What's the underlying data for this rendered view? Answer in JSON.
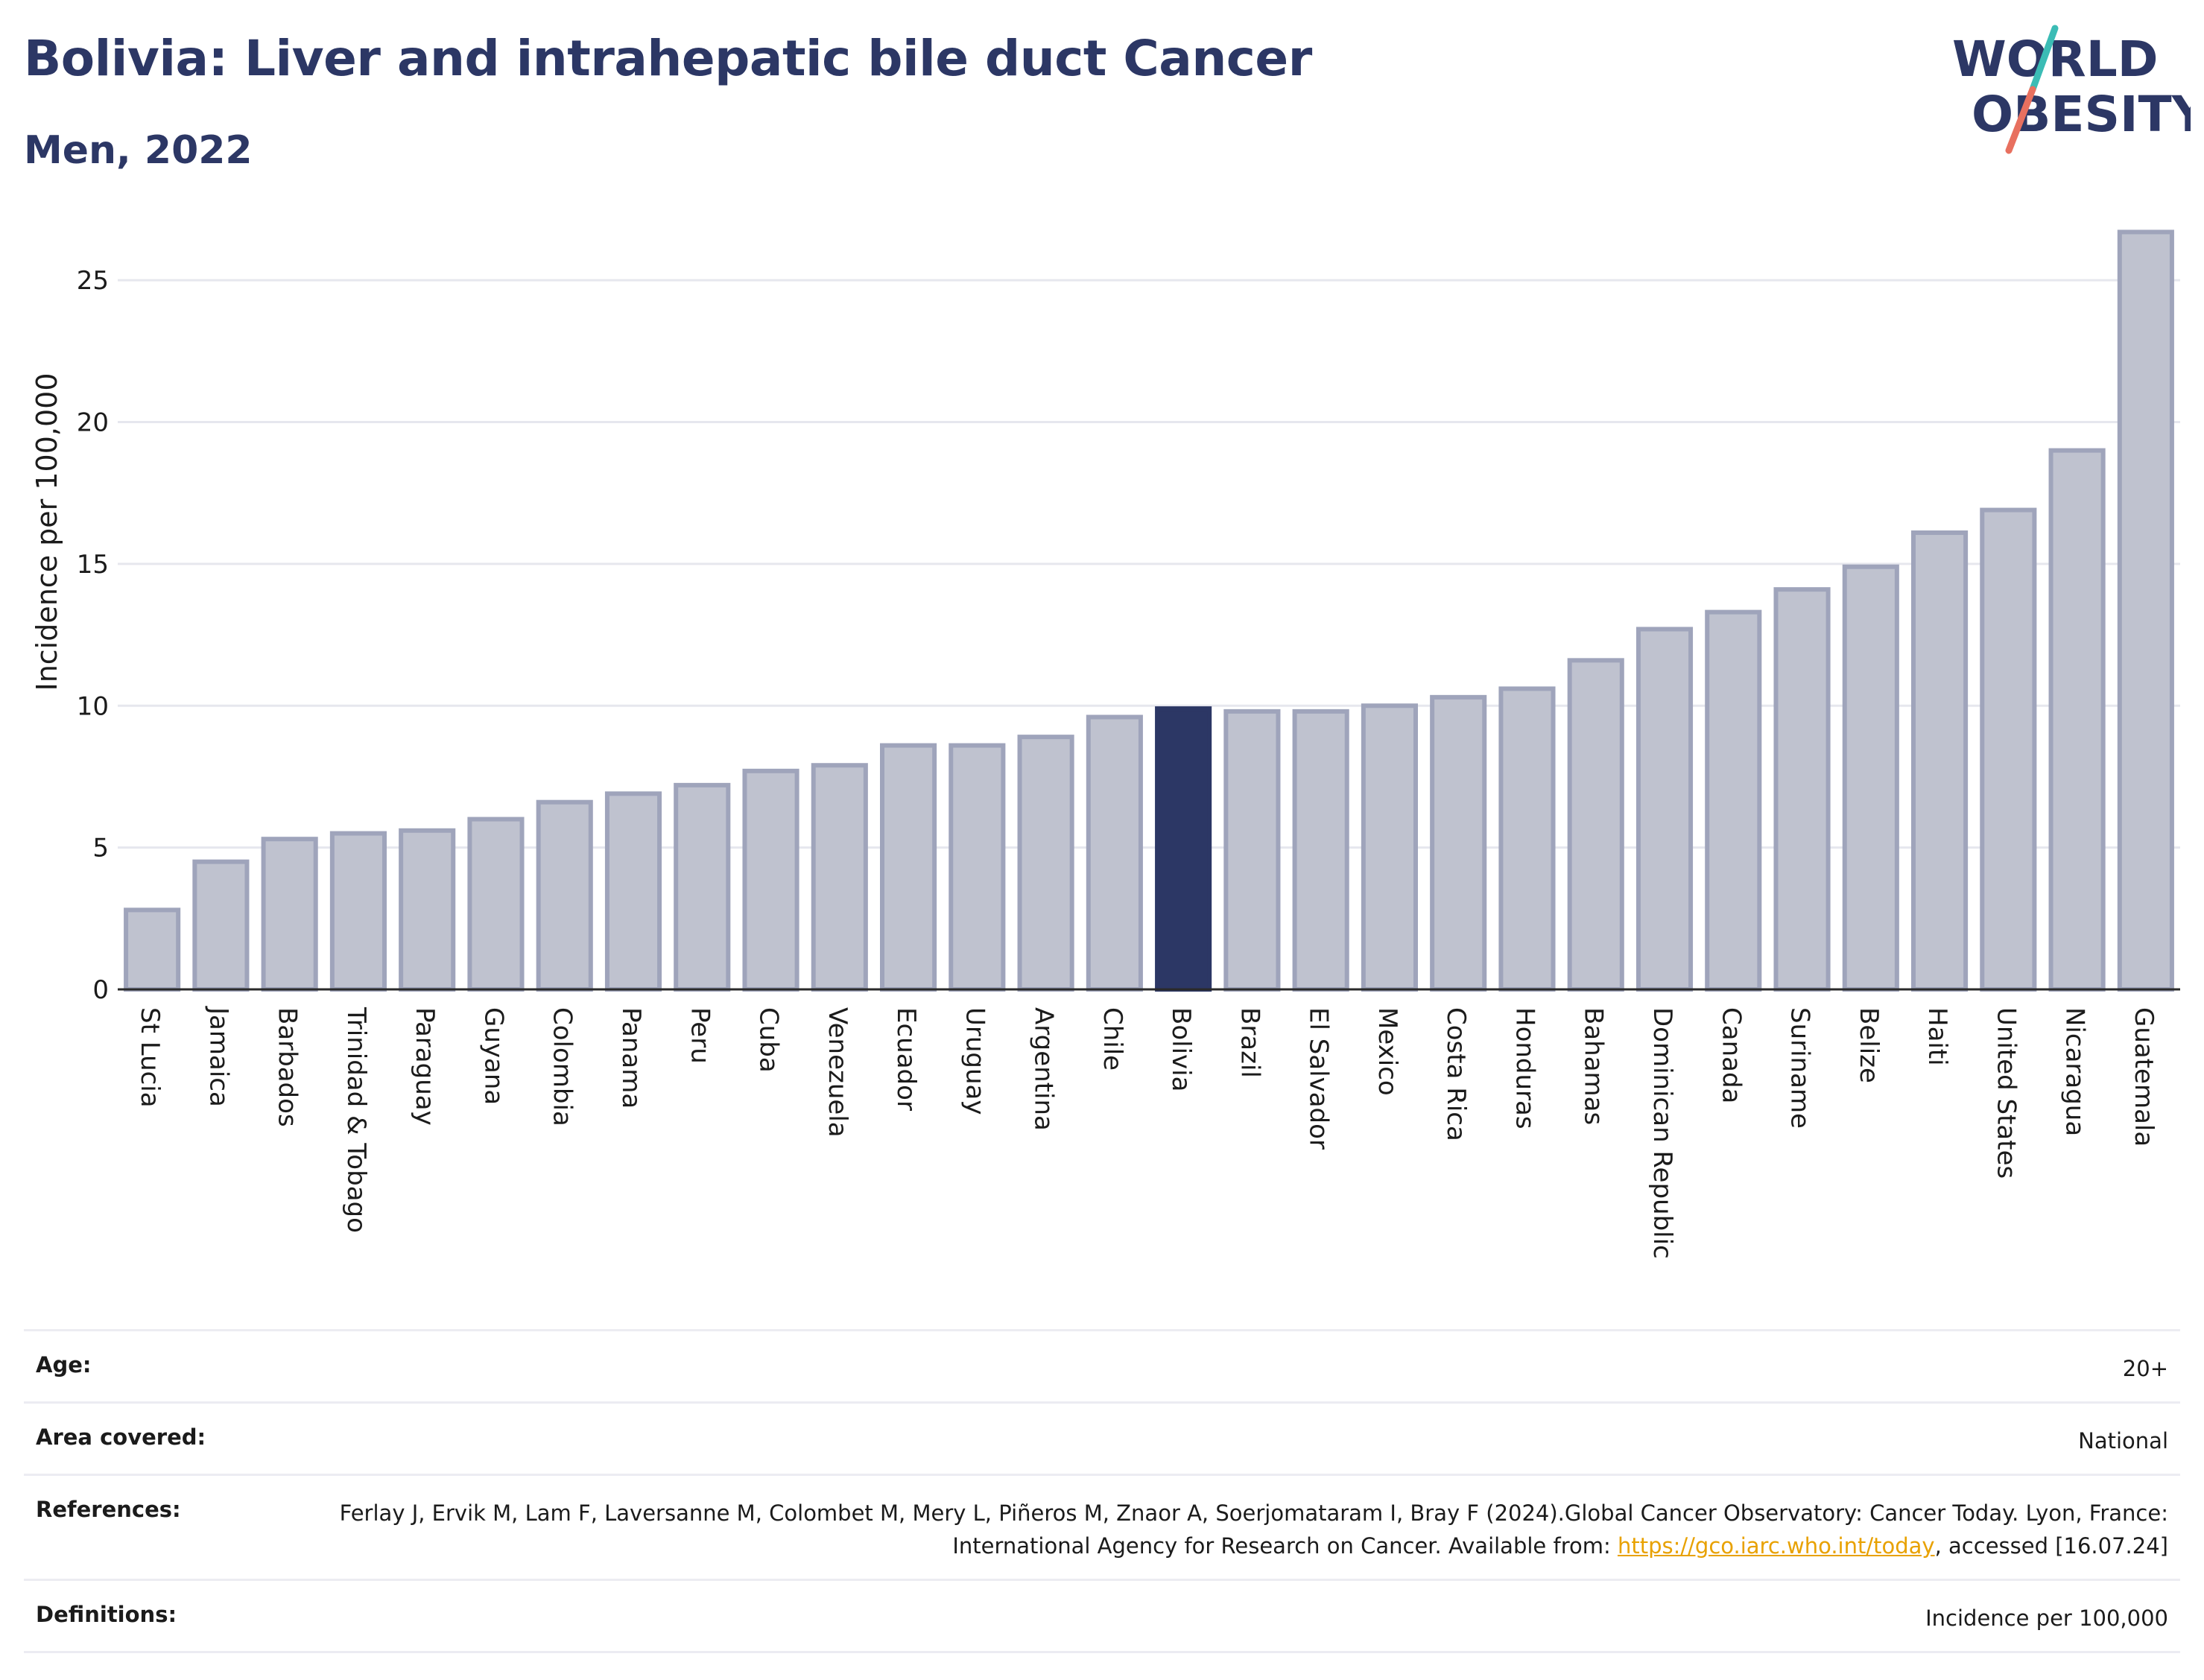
{
  "header": {
    "title": "Bolivia: Liver and intrahepatic bile duct Cancer",
    "subtitle": "Men, 2022",
    "logo_line1": "WORLD",
    "logo_line2": "OBESITY"
  },
  "chart_data": {
    "type": "bar",
    "ylabel": "Incidence per 100,000",
    "ylim": [
      0,
      27
    ],
    "yticks": [
      0,
      5,
      10,
      15,
      20,
      25
    ],
    "grid": true,
    "highlight": "Bolivia",
    "categories": [
      "St Lucia",
      "Jamaica",
      "Barbados",
      "Trinidad & Tobago",
      "Paraguay",
      "Guyana",
      "Colombia",
      "Panama",
      "Peru",
      "Cuba",
      "Venezuela",
      "Ecuador",
      "Uruguay",
      "Argentina",
      "Chile",
      "Bolivia",
      "Brazil",
      "El Salvador",
      "Mexico",
      "Costa Rica",
      "Honduras",
      "Bahamas",
      "Dominican Republic",
      "Canada",
      "Suriname",
      "Belize",
      "Haiti",
      "United States",
      "Nicaragua",
      "Guatemala"
    ],
    "values": [
      2.8,
      4.5,
      5.3,
      5.5,
      5.6,
      6.0,
      6.6,
      6.9,
      7.2,
      7.7,
      7.9,
      8.6,
      8.6,
      8.9,
      9.6,
      9.9,
      9.8,
      9.8,
      10.0,
      10.3,
      10.6,
      11.6,
      12.7,
      13.3,
      14.1,
      14.9,
      16.1,
      16.9,
      19.0,
      26.7
    ]
  },
  "colors": {
    "bar": "#bfc2cf",
    "bar_stroke": "#9fa4bb",
    "highlight": "#2c3765",
    "title": "#2c3765",
    "logo_teal": "#3bbcb5",
    "logo_coral": "#e8705f"
  },
  "footer": {
    "age_label": "Age:",
    "age_value": "20+",
    "area_label": "Area covered:",
    "area_value": "National",
    "ref_label": "References:",
    "ref_text_1": "Ferlay J, Ervik M, Lam F, Laversanne M, Colombet M, Mery L, Piñeros M, Znaor A, Soerjomataram I, Bray F (2024).Global Cancer Observatory: Cancer Today. Lyon, France: International Agency for Research on Cancer. Available from: ",
    "ref_link": "https://gco.iarc.who.int/today",
    "ref_text_2": ", accessed [16.07.24]",
    "def_label": "Definitions:",
    "def_value": "Incidence per 100,000"
  }
}
